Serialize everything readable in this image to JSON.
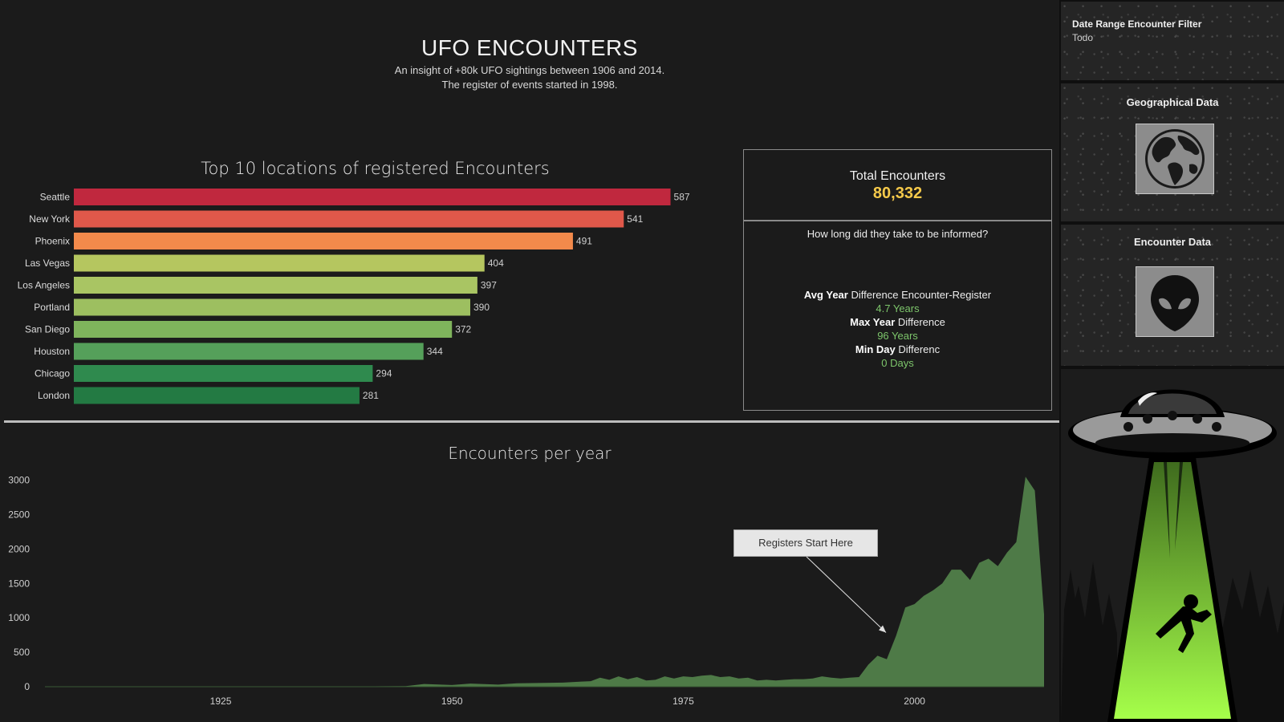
{
  "header": {
    "title": "UFO ENCOUNTERS",
    "subtitle_line1": "An insight of +80k UFO sightings between 1906 and 2014.",
    "subtitle_line2": "The register of events started in 1998."
  },
  "colors": {
    "bar_gradient": [
      "#c0283e",
      "#e0584a",
      "#f38a4b",
      "#b5c65f",
      "#a9c563",
      "#9dbf60",
      "#7fb45c",
      "#55a05a",
      "#2f8a4e",
      "#237a43"
    ],
    "area_fill": "#4e7a47",
    "kpi_value": "#f5c94a",
    "kpi_green": "#7dc66b"
  },
  "chart_data": [
    {
      "type": "bar",
      "orientation": "horizontal",
      "title": "Top 10 locations of registered Encounters",
      "categories": [
        "Seattle",
        "New York",
        "Phoenix",
        "Las Vegas",
        "Los Angeles",
        "Portland",
        "San Diego",
        "Houston",
        "Chicago",
        "London"
      ],
      "values": [
        587,
        541,
        491,
        404,
        397,
        390,
        372,
        344,
        294,
        281
      ],
      "xlim": [
        0,
        600
      ]
    },
    {
      "type": "area",
      "title": "Encounters per year",
      "x": [
        1906,
        1910,
        1920,
        1930,
        1940,
        1945,
        1947,
        1950,
        1952,
        1955,
        1957,
        1960,
        1962,
        1964,
        1965,
        1966,
        1967,
        1968,
        1969,
        1970,
        1971,
        1972,
        1973,
        1974,
        1975,
        1976,
        1977,
        1978,
        1979,
        1980,
        1981,
        1982,
        1983,
        1984,
        1985,
        1986,
        1987,
        1988,
        1989,
        1990,
        1991,
        1992,
        1993,
        1994,
        1995,
        1996,
        1997,
        1998,
        1999,
        2000,
        2001,
        2002,
        2003,
        2004,
        2005,
        2006,
        2007,
        2008,
        2009,
        2010,
        2011,
        2012,
        2013,
        2014
      ],
      "y": [
        1,
        2,
        3,
        4,
        5,
        8,
        40,
        25,
        45,
        30,
        50,
        55,
        60,
        75,
        80,
        130,
        100,
        150,
        110,
        140,
        90,
        100,
        150,
        120,
        150,
        140,
        160,
        170,
        140,
        150,
        120,
        130,
        90,
        100,
        90,
        100,
        110,
        110,
        120,
        150,
        130,
        120,
        130,
        140,
        320,
        450,
        400,
        740,
        1150,
        1200,
        1320,
        1400,
        1500,
        1700,
        1700,
        1550,
        1800,
        1860,
        1750,
        1950,
        2100,
        3050,
        2850,
        1050
      ],
      "xticks": [
        1925,
        1950,
        1975,
        2000
      ],
      "yticks": [
        0,
        500,
        1000,
        1500,
        2000,
        2500,
        3000
      ],
      "xlim": [
        1906,
        2014
      ],
      "ylim": [
        0,
        3100
      ],
      "annotation": {
        "text": "Registers Start Here",
        "x": 1997,
        "y": 740
      }
    }
  ],
  "kpi": {
    "total_label": "Total Encounters",
    "total_value": "80,332",
    "question": "How long did they take to be informed?",
    "avg_label_bold": "Avg Year",
    "avg_label_rest": " Difference Encounter-Register",
    "avg_value": "4.7 Years",
    "max_label_bold": "Max Year",
    "max_label_rest": " Difference",
    "max_value": "96 Years",
    "min_label_bold": "Min Day",
    "min_label_rest": " Differenc",
    "min_value": "0 Days"
  },
  "sidebar": {
    "filter_label": "Date Range Encounter Filter",
    "filter_value": "Todo",
    "geo_title": "Geographical Data",
    "geo_icon": "globe-icon",
    "encounter_title": "Encounter Data",
    "encounter_icon": "alien-icon",
    "illustration": "ufo-abduction-illustration"
  }
}
